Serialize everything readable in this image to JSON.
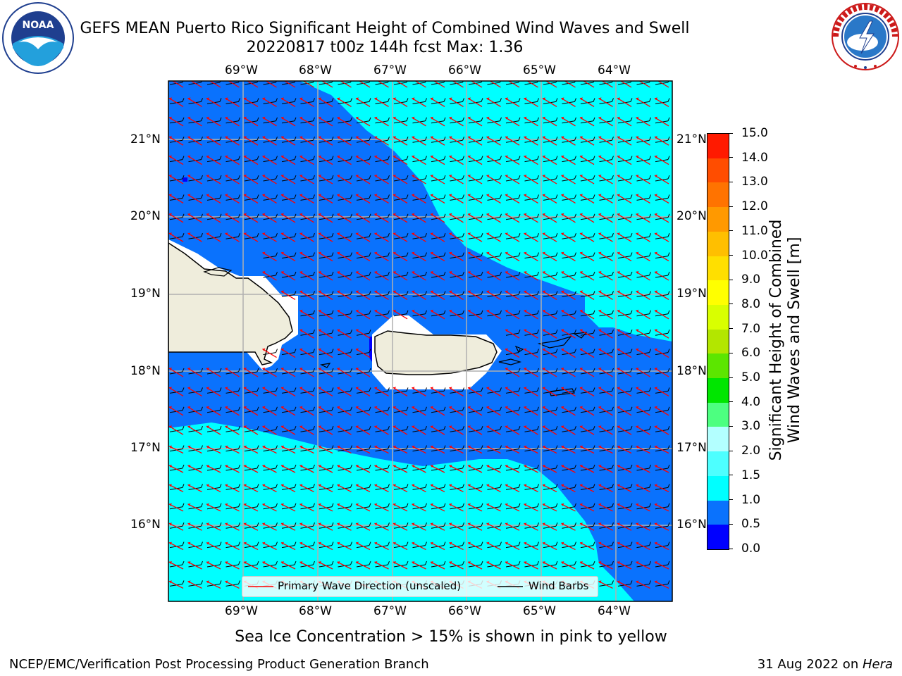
{
  "header": {
    "title_line1": "GEFS MEAN Puerto Rico Significant Height of Combined Wind Waves and Swell",
    "title_line2": "20220817 t00z 144h fcst   Max: 1.36"
  },
  "logos": {
    "left": {
      "text": "NOAA",
      "ring_text": "NATIONAL OCEANIC AND ATMOSPHERIC ADMINISTRATION · U.S. DEPARTMENT OF COMMERCE"
    },
    "right": {
      "ring_text": "NATIONAL WEATHER SERVICE"
    }
  },
  "map": {
    "lon_labels": [
      "69°W",
      "68°W",
      "67°W",
      "66°W",
      "65°W",
      "64°W"
    ],
    "lat_labels": [
      "21°N",
      "20°N",
      "19°N",
      "18°N",
      "17°N",
      "16°N"
    ],
    "colors": {
      "band_0_0_5": "#0000ff",
      "band_0_5_1_0": "#0a72fd",
      "band_1_0_1_5": "#00ffff",
      "land": "#efeddc",
      "arrow": "#ff0000",
      "barb": "#000000"
    }
  },
  "legend": {
    "primary_wave_label": "Primary Wave Direction (unscaled)",
    "wind_barbs_label": "Wind Barbs"
  },
  "colorbar": {
    "label_line1": "Significant Height of Combined",
    "label_line2": "Wind Waves and Swell [m]",
    "ticks": [
      "0.0",
      "0.5",
      "1.0",
      "1.5",
      "2.0",
      "3.0",
      "4.0",
      "5.0",
      "6.0",
      "7.0",
      "8.0",
      "9.0",
      "10.0",
      "11.0",
      "12.0",
      "13.0",
      "14.0",
      "15.0"
    ],
    "colors": [
      "#0000ff",
      "#0a72fd",
      "#00ffff",
      "#4dffff",
      "#b3ffff",
      "#4dff80",
      "#00e600",
      "#5ce600",
      "#b3e600",
      "#d9ff00",
      "#ffff00",
      "#ffdf00",
      "#ffbf00",
      "#ff9900",
      "#ff7300",
      "#ff4d00",
      "#ff1a00"
    ]
  },
  "caption": "Sea Ice Concentration > 15% is shown in pink to yellow",
  "footer": {
    "left": "NCEP/EMC/Verification Post Processing Product Generation Branch",
    "date": "31 Aug 2022 on ",
    "machine": "Hera"
  }
}
